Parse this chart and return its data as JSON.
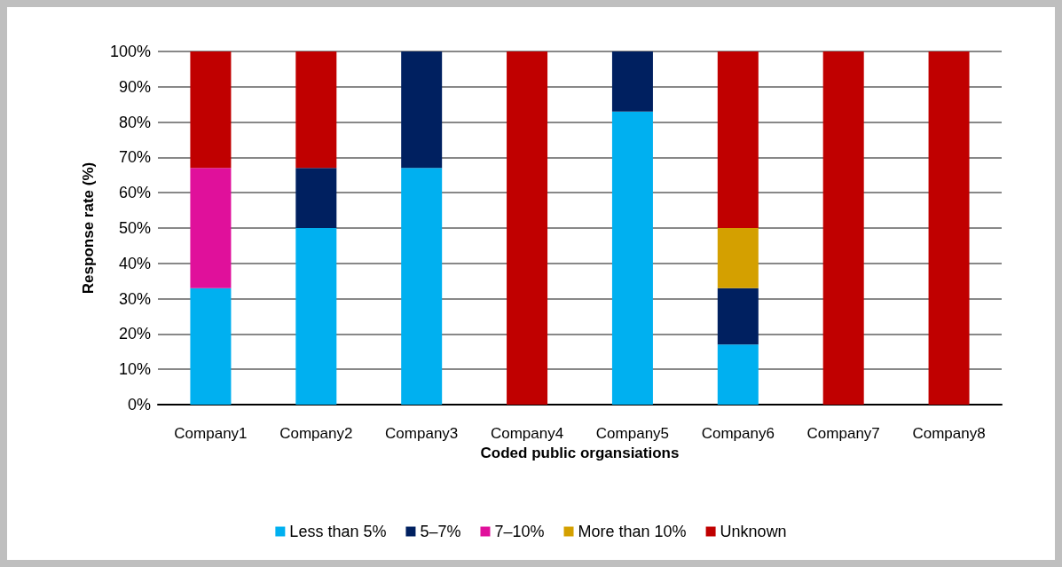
{
  "chart_data": {
    "type": "bar",
    "stacked": true,
    "xlabel": "Coded public organsiations",
    "ylabel": "Response rate (%)",
    "categories": [
      "Company1",
      "Company2",
      "Company3",
      "Company4",
      "Company5",
      "Company6",
      "Company7",
      "Company8"
    ],
    "series": [
      {
        "name": "Less than 5%",
        "color": "#00b0f0",
        "values": [
          33,
          50,
          67,
          0,
          83,
          17,
          0,
          0
        ]
      },
      {
        "name": "5–7%",
        "color": "#002060",
        "values": [
          0,
          17,
          33,
          0,
          17,
          16,
          0,
          0
        ]
      },
      {
        "name": "7–10%",
        "color": "#e0109b",
        "values": [
          34,
          0,
          0,
          0,
          0,
          0,
          0,
          0
        ]
      },
      {
        "name": "More than 10%",
        "color": "#d4a000",
        "values": [
          0,
          0,
          0,
          0,
          0,
          17,
          0,
          0
        ]
      },
      {
        "name": "Unknown",
        "color": "#c00000",
        "values": [
          33,
          33,
          0,
          100,
          0,
          50,
          100,
          100
        ]
      }
    ],
    "ylim": [
      0,
      100
    ],
    "yticks": [
      {
        "value": 0,
        "label": "0%"
      },
      {
        "value": 10,
        "label": "10%"
      },
      {
        "value": 20,
        "label": "20%"
      },
      {
        "value": 30,
        "label": "30%"
      },
      {
        "value": 40,
        "label": "40%"
      },
      {
        "value": 50,
        "label": "50%"
      },
      {
        "value": 60,
        "label": "60%"
      },
      {
        "value": 70,
        "label": "70%"
      },
      {
        "value": 80,
        "label": "80%"
      },
      {
        "value": 90,
        "label": "90%"
      },
      {
        "value": 100,
        "label": "100%"
      }
    ],
    "grid": "y",
    "legend": "bottom"
  }
}
